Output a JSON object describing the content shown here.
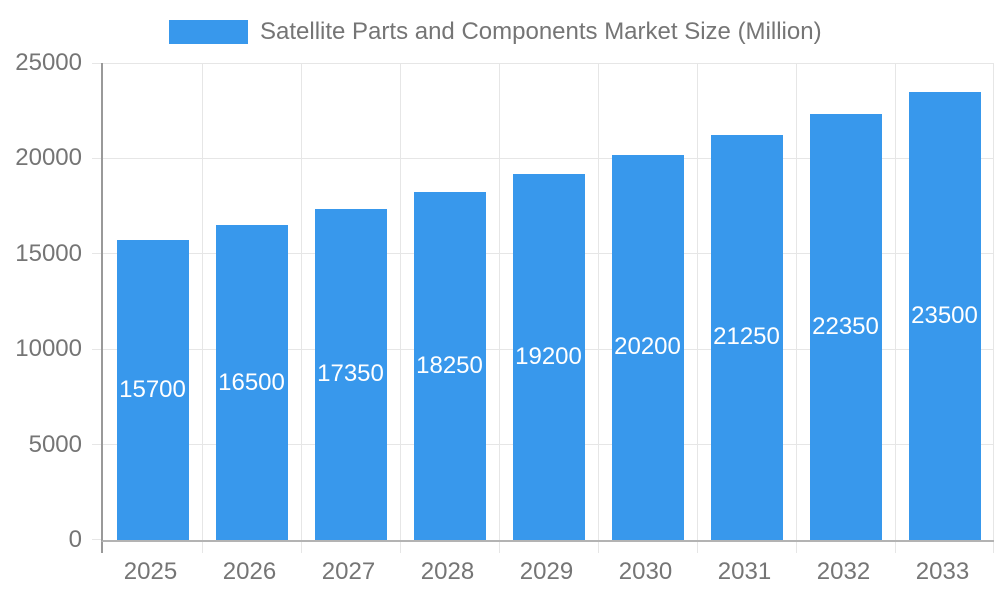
{
  "chart_data": {
    "type": "bar",
    "title": "Satellite Parts and Components Market Size (Million)",
    "legend": [
      "Satellite Parts and Components Market Size (Million)"
    ],
    "legend_position": "top",
    "categories": [
      "2025",
      "2026",
      "2027",
      "2028",
      "2029",
      "2030",
      "2031",
      "2032",
      "2033"
    ],
    "values": [
      15700,
      16500,
      17350,
      18250,
      19200,
      20200,
      21250,
      22350,
      23500
    ],
    "xlabel": "",
    "ylabel": "",
    "ylim": [
      0,
      25000
    ],
    "yticks": [
      0,
      5000,
      10000,
      15000,
      20000,
      25000
    ],
    "grid": true,
    "bar_labels_shown": true,
    "colors": {
      "bar": "#3898EC",
      "bar_label_text": "#ffffff",
      "axis_text": "#757575",
      "gridline": "#e6e6e6",
      "y_axis_line": "#999999",
      "x_axis_line": "#b3b3b3",
      "background": "#ffffff"
    }
  }
}
